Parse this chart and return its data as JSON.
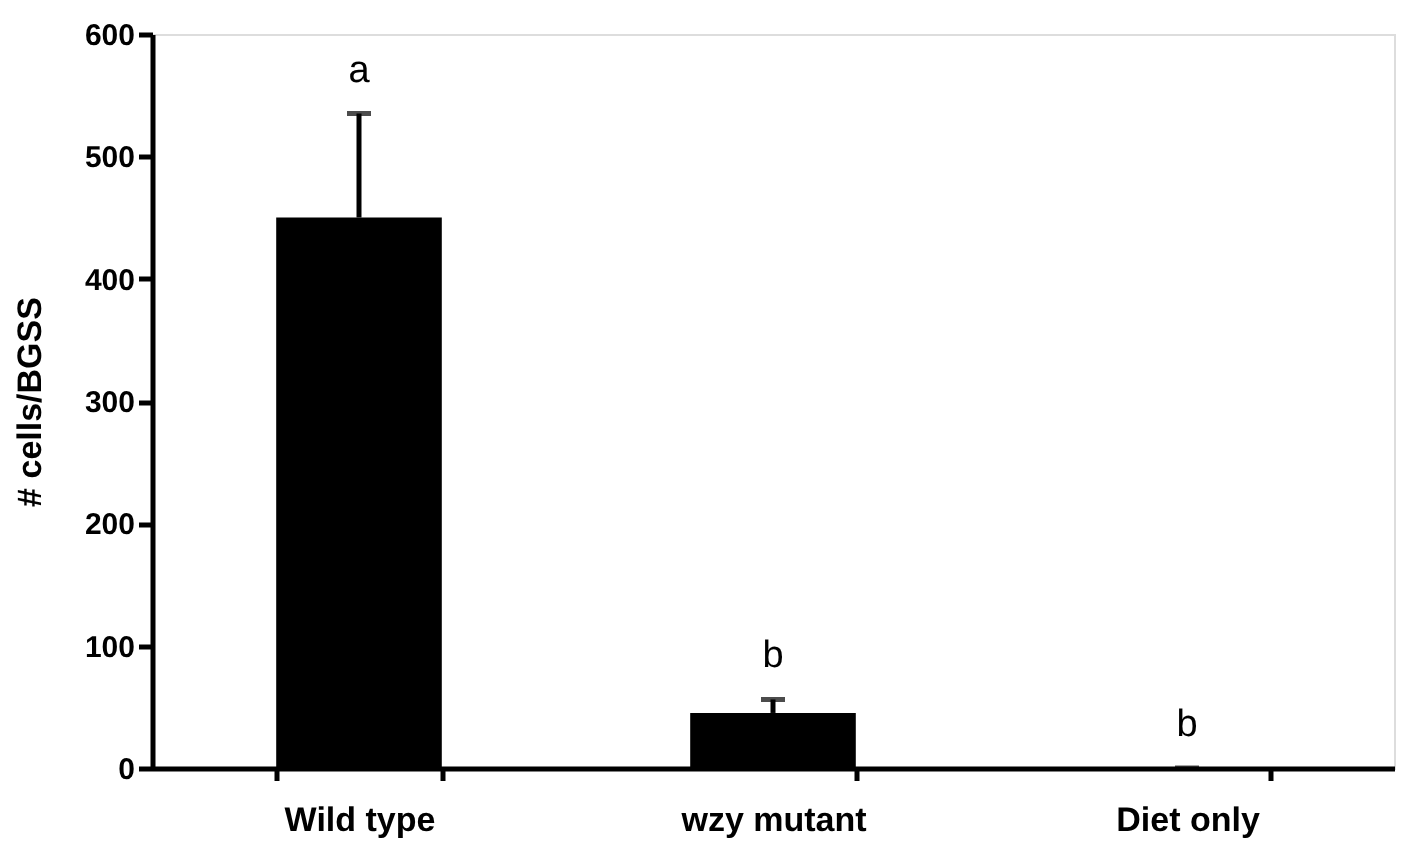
{
  "chart_data": {
    "type": "bar",
    "ylabel": "# cells/BGSS",
    "categories": [
      "Wild type",
      "wzy mutant",
      "Diet only"
    ],
    "values": [
      450,
      45,
      0
    ],
    "errors": [
      85,
      11,
      0
    ],
    "color": "#000000",
    "ylim": [
      0,
      600
    ],
    "yticks": [
      0,
      100,
      200,
      300,
      400,
      500,
      600
    ],
    "grid": false,
    "annotations": [
      "a",
      "b",
      "b"
    ]
  }
}
